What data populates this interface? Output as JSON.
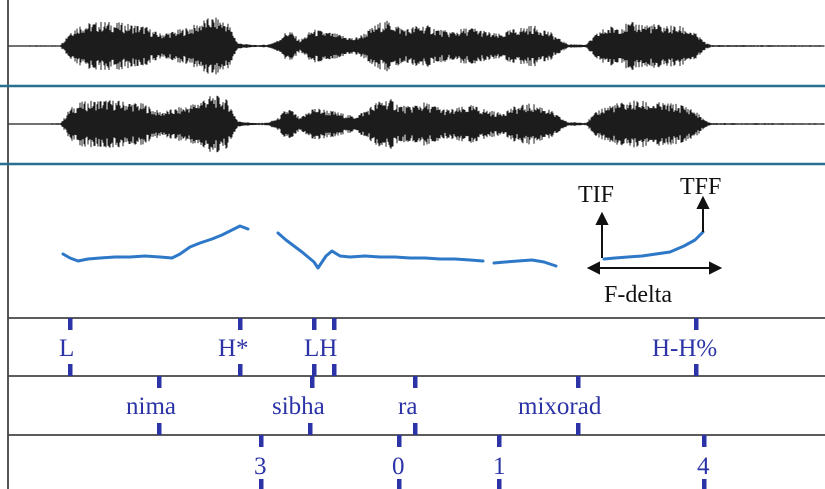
{
  "colors": {
    "waveform": "#1c1c1c",
    "channel_divider": "#2a6f8f",
    "pitch_contour": "#2e78c8",
    "tier_label": "#2b33a6",
    "tier_line": "#444444",
    "annotation": "#111111"
  },
  "annotation": {
    "start_label": "TIF",
    "end_label": "TFF",
    "range_label": "F-delta"
  },
  "tiers": {
    "tones": [
      {
        "label": "L"
      },
      {
        "label": "H*"
      },
      {
        "label": "LH"
      },
      {
        "label": "H-H%"
      }
    ],
    "words": [
      {
        "label": "nima"
      },
      {
        "label": "sibha"
      },
      {
        "label": "ra"
      },
      {
        "label": "mixorad"
      }
    ],
    "breaks": [
      {
        "label": "3"
      },
      {
        "label": "0"
      },
      {
        "label": "1"
      },
      {
        "label": "4"
      }
    ]
  }
}
